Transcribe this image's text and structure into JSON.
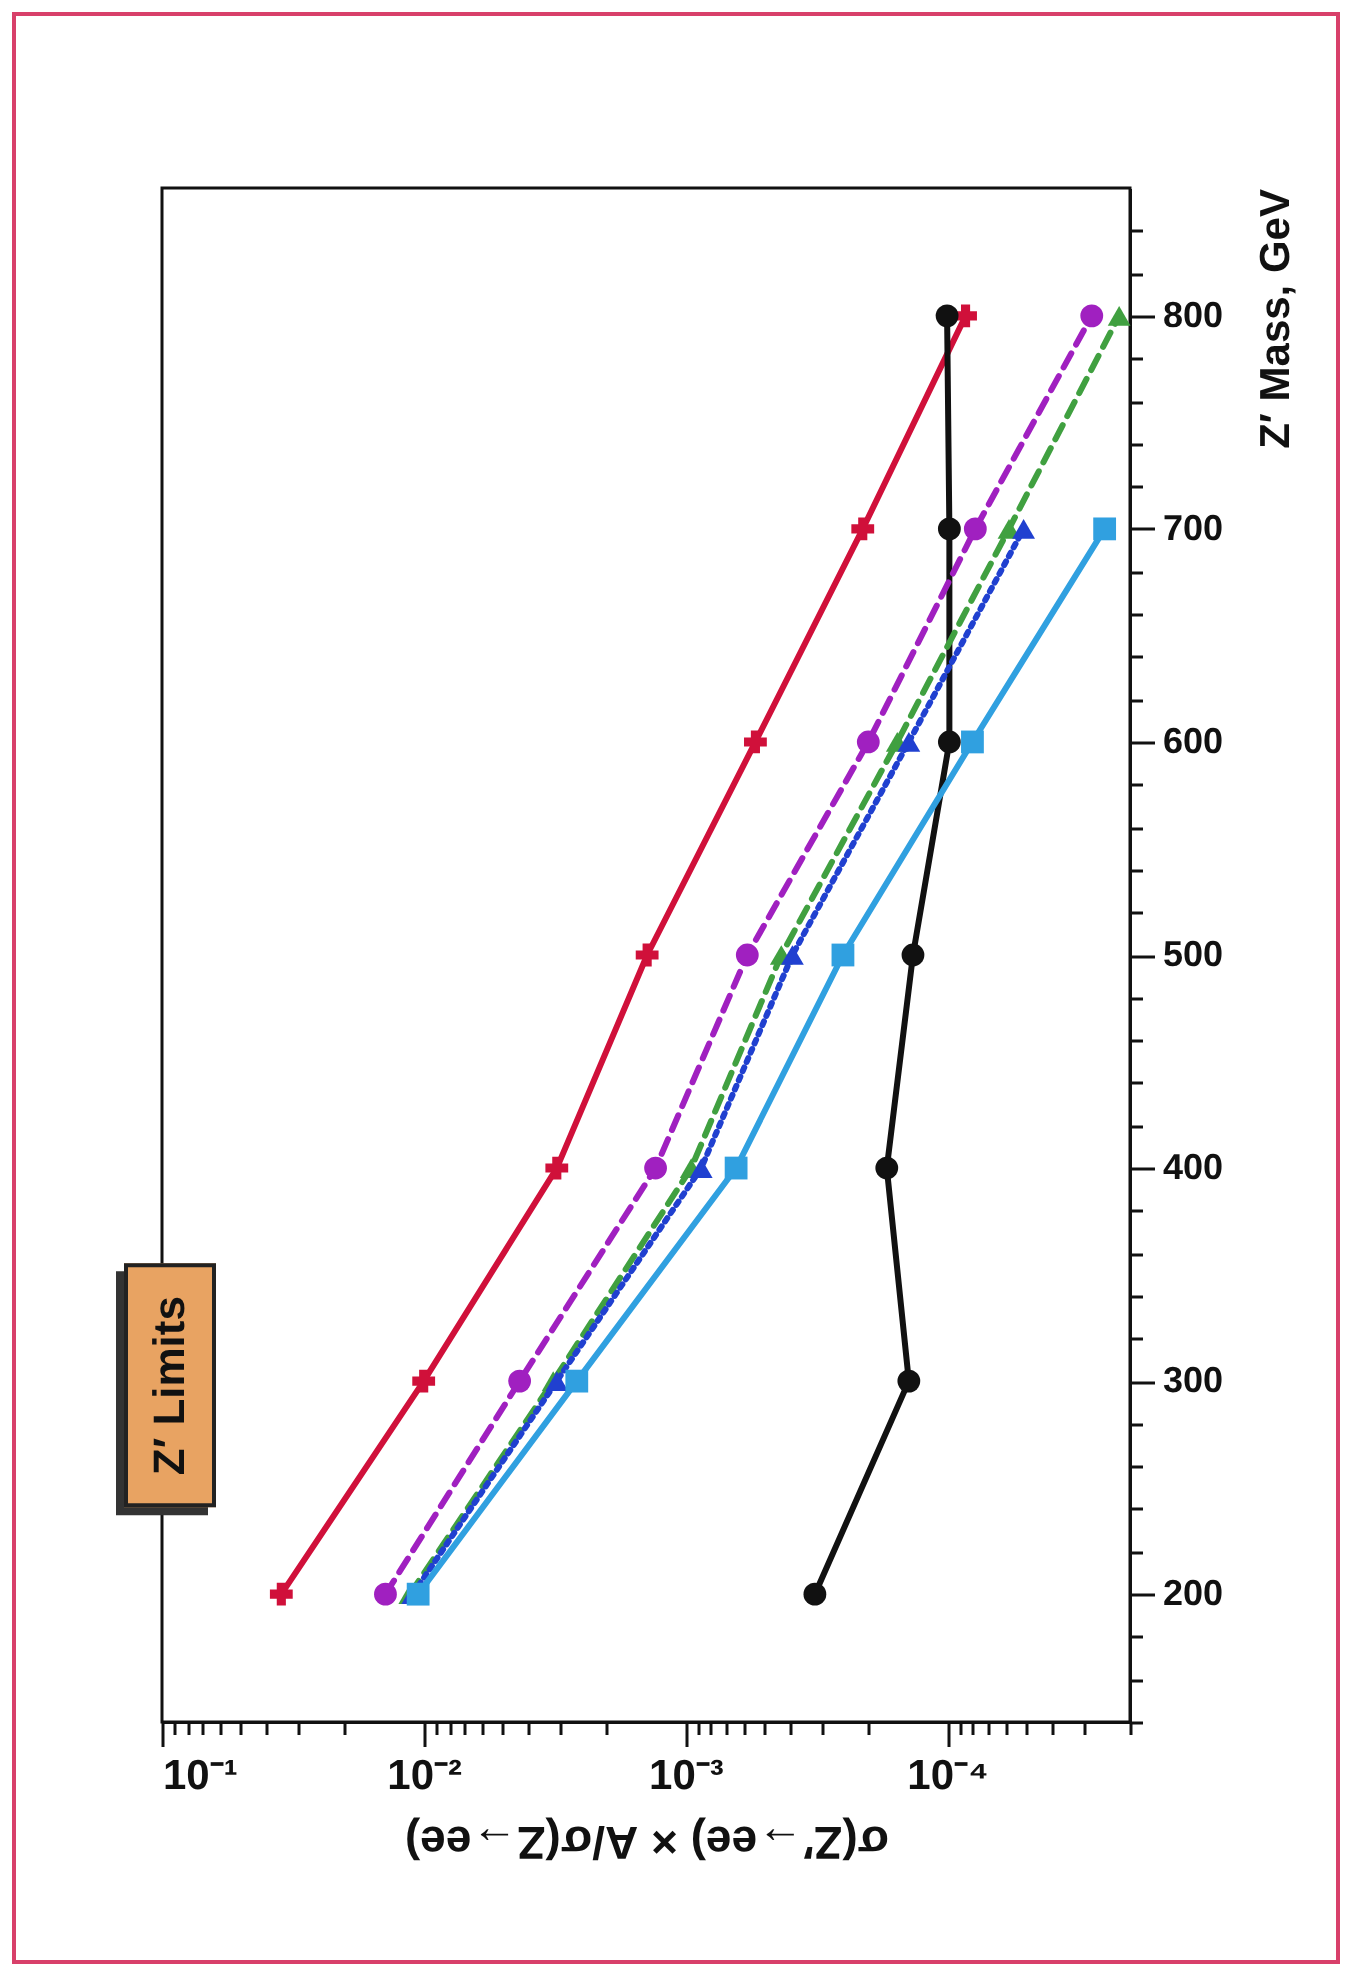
{
  "chart_data": {
    "type": "line",
    "title": "Z′ Limits",
    "xlabel": "σ(Z′→ee) × A/σ(Z→ee)",
    "ylabel": "Z′ Mass, GeV",
    "log": "x",
    "xlim": [
      0.1,
      2e-05
    ],
    "xticks": [
      {
        "value": 0.1,
        "label": "10⁻¹"
      },
      {
        "value": 0.09,
        "label": null
      },
      {
        "value": 0.08,
        "label": null
      },
      {
        "value": 0.07,
        "label": null
      },
      {
        "value": 0.06,
        "label": null
      },
      {
        "value": 0.05,
        "label": null
      },
      {
        "value": 0.04,
        "label": null
      },
      {
        "value": 0.03,
        "label": null
      },
      {
        "value": 0.02,
        "label": null
      },
      {
        "value": 0.01,
        "label": "10⁻²"
      },
      {
        "value": 0.009,
        "label": null
      },
      {
        "value": 0.008,
        "label": null
      },
      {
        "value": 0.007,
        "label": null
      },
      {
        "value": 0.006,
        "label": null
      },
      {
        "value": 0.005,
        "label": null
      },
      {
        "value": 0.004,
        "label": null
      },
      {
        "value": 0.003,
        "label": null
      },
      {
        "value": 0.002,
        "label": null
      },
      {
        "value": 0.001,
        "label": "10⁻³"
      },
      {
        "value": 0.0009,
        "label": null
      },
      {
        "value": 0.0008,
        "label": null
      },
      {
        "value": 0.0007,
        "label": null
      },
      {
        "value": 0.0006,
        "label": null
      },
      {
        "value": 0.0005,
        "label": null
      },
      {
        "value": 0.0004,
        "label": null
      },
      {
        "value": 0.0003,
        "label": null
      },
      {
        "value": 0.0002,
        "label": null
      },
      {
        "value": 0.0001,
        "label": "10⁻⁴"
      },
      {
        "value": 9e-05,
        "label": null
      },
      {
        "value": 8e-05,
        "label": null
      },
      {
        "value": 7e-05,
        "label": null
      },
      {
        "value": 6e-05,
        "label": null
      },
      {
        "value": 5e-05,
        "label": null
      },
      {
        "value": 4e-05,
        "label": null
      },
      {
        "value": 3e-05,
        "label": null
      },
      {
        "value": 2e-05,
        "label": null
      }
    ],
    "ylim": [
      140,
      860
    ],
    "yticks": [
      {
        "value": 140,
        "label": null
      },
      {
        "value": 160,
        "label": null
      },
      {
        "value": 180,
        "label": null
      },
      200,
      {
        "value": 220,
        "label": null
      },
      {
        "value": 240,
        "label": null
      },
      {
        "value": 260,
        "label": null
      },
      {
        "value": 280,
        "label": null
      },
      300,
      {
        "value": 320,
        "label": null
      },
      {
        "value": 340,
        "label": null
      },
      {
        "value": 360,
        "label": null
      },
      {
        "value": 380,
        "label": null
      },
      400,
      {
        "value": 420,
        "label": null
      },
      {
        "value": 440,
        "label": null
      },
      {
        "value": 460,
        "label": null
      },
      {
        "value": 480,
        "label": null
      },
      500,
      {
        "value": 520,
        "label": null
      },
      {
        "value": 540,
        "label": null
      },
      {
        "value": 560,
        "label": null
      },
      {
        "value": 580,
        "label": null
      },
      600,
      {
        "value": 620,
        "label": null
      },
      {
        "value": 640,
        "label": null
      },
      {
        "value": 660,
        "label": null
      },
      {
        "value": 680,
        "label": null
      },
      700,
      {
        "value": 720,
        "label": null
      },
      {
        "value": 740,
        "label": null
      },
      {
        "value": 760,
        "label": null
      },
      {
        "value": 780,
        "label": null
      },
      800,
      {
        "value": 820,
        "label": null
      },
      {
        "value": 840,
        "label": null
      }
    ],
    "series": [
      {
        "color": "#d0103a",
        "marker": "cross",
        "line_style": "solid",
        "x": [
          0.035,
          0.01,
          0.0031,
          0.0014,
          0.00054,
          0.00021,
          8.5e-05
        ],
        "values": [
          200,
          300,
          400,
          500,
          600,
          700,
          800
        ]
      },
      {
        "color": "#111111",
        "marker": "circle",
        "line_style": "solid",
        "x": [
          0.00032,
          0.00014,
          0.00017,
          0.000135,
          9.8e-05,
          9.8e-05,
          0.0001
        ],
        "values": [
          200,
          300,
          400,
          500,
          600,
          700,
          800
        ]
      },
      {
        "color": "#a020c0",
        "marker": "circle",
        "line_style": "dashed",
        "x": [
          0.014,
          0.0043,
          0.0013,
          0.00058,
          0.0002,
          7.8e-05,
          2.8e-05
        ],
        "values": [
          200,
          300,
          400,
          500,
          600,
          700,
          800
        ]
      },
      {
        "color": "#40a040",
        "marker": "triangle",
        "line_style": "dashed",
        "x": [
          0.0113,
          0.0032,
          0.00095,
          0.00043,
          0.000155,
          5.8e-05,
          2.2e-05
        ],
        "values": [
          200,
          300,
          400,
          500,
          600,
          700,
          800
        ]
      },
      {
        "color": "#2040d0",
        "marker": "triangle",
        "line_style": "dotted",
        "x": [
          0.011,
          0.0031,
          0.00087,
          0.00039,
          0.00014,
          5.1e-05
        ],
        "values": [
          200,
          300,
          400,
          500,
          600,
          700
        ]
      },
      {
        "color": "#30a0e0",
        "marker": "square",
        "line_style": "solid",
        "x": [
          0.0105,
          0.0026,
          0.00064,
          0.00025,
          8e-05,
          2.5e-05
        ],
        "values": [
          200,
          300,
          400,
          500,
          600,
          700
        ]
      }
    ]
  }
}
